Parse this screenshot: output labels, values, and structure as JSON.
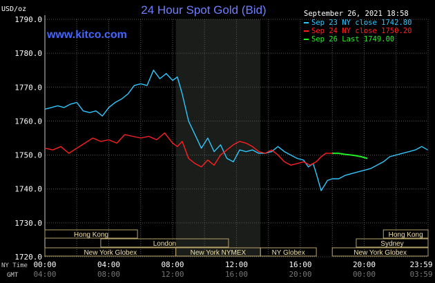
{
  "chart_data": {
    "type": "line",
    "title": "24 Hour Spot Gold (Bid)",
    "watermark": "www.kitco.com",
    "ylabel": "USD/oz",
    "timestamp": "September 26, 2021 18:58",
    "ylim": [
      1720,
      1790
    ],
    "yticks": [
      "1790.0",
      "1780.0",
      "1770.0",
      "1760.0",
      "1750.0",
      "1740.0",
      "1730.0",
      "1720.0"
    ],
    "ytick_values": [
      1790,
      1780,
      1770,
      1760,
      1750,
      1740,
      1730,
      1720
    ],
    "x_range_hours": [
      0,
      24
    ],
    "grid": true,
    "legend_position": "top-right",
    "axis_rows": [
      {
        "label": "NY Time",
        "ticks": [
          "00:00",
          "04:00",
          "08:00",
          "12:00",
          "16:00",
          "20:00",
          "23:59"
        ]
      },
      {
        "label": "GMT",
        "ticks": [
          "04:00",
          "08:00",
          "12:00",
          "16:00",
          "20:00",
          "00:00",
          "03:59"
        ]
      }
    ],
    "tick_hours": [
      0,
      4,
      8,
      12,
      16,
      20,
      23.98
    ],
    "shaded_region_hours": [
      8.2,
      13.5
    ],
    "sessions": [
      {
        "name": "Hong Kong",
        "row": 0,
        "start_h": 0,
        "end_h": 5.8
      },
      {
        "name": "Hong Kong",
        "row": 0,
        "start_h": 21.2,
        "end_h": 24
      },
      {
        "name": "London",
        "row": 1,
        "start_h": 3.5,
        "end_h": 11.5
      },
      {
        "name": "Sydney",
        "row": 1,
        "start_h": 19.5,
        "end_h": 24
      },
      {
        "name": "New York Globex",
        "row": 2,
        "start_h": 0,
        "end_h": 8.2
      },
      {
        "name": "New York NYMEX",
        "row": 2,
        "start_h": 8.2,
        "end_h": 13.5
      },
      {
        "name": "NY Globex",
        "row": 2,
        "start_h": 13.5,
        "end_h": 17
      },
      {
        "name": "New York Globex",
        "row": 2,
        "start_h": 18,
        "end_h": 24
      }
    ],
    "series": [
      {
        "name": "Sep 23 NY close 1742.80",
        "color": "#2ec8ff",
        "x": [
          0,
          0.4,
          0.8,
          1.2,
          1.6,
          2,
          2.4,
          2.8,
          3.2,
          3.6,
          4,
          4.4,
          4.8,
          5.2,
          5.6,
          6,
          6.4,
          6.8,
          7.2,
          7.6,
          8,
          8.3,
          8.6,
          9,
          9.4,
          9.8,
          10.2,
          10.6,
          11,
          11.4,
          11.8,
          12.2,
          12.6,
          13,
          13.4,
          13.8,
          14.2,
          14.6,
          15,
          15.4,
          15.8,
          16.2,
          16.5,
          16.8,
          17,
          17.3,
          17.7,
          18,
          18.4,
          18.8,
          19.2,
          19.6,
          20,
          20.4,
          20.8,
          21.2,
          21.6,
          22,
          22.4,
          22.8,
          23.2,
          23.6,
          23.98
        ],
        "y": [
          1763.5,
          1764.0,
          1764.5,
          1764.0,
          1765.0,
          1765.5,
          1763.0,
          1762.5,
          1763.0,
          1761.5,
          1764.0,
          1765.5,
          1766.5,
          1768.0,
          1770.5,
          1771.0,
          1770.5,
          1775.0,
          1772.5,
          1774.0,
          1772.0,
          1773.0,
          1768.0,
          1760.0,
          1756.0,
          1752.0,
          1755.0,
          1751.0,
          1753.0,
          1749.0,
          1748.0,
          1751.5,
          1751.0,
          1751.5,
          1750.5,
          1750.5,
          1751.0,
          1752.5,
          1751.0,
          1750.0,
          1749.0,
          1748.5,
          1746.5,
          1747.5,
          1744.5,
          1739.5,
          1742.5,
          1743.0,
          1743.0,
          1744.0,
          1744.5,
          1745.0,
          1745.5,
          1746.0,
          1747.0,
          1748.0,
          1749.5,
          1750.0,
          1750.5,
          1751.0,
          1751.5,
          1752.5,
          1751.5
        ]
      },
      {
        "name": "Sep 24 NY close 1750.20",
        "color": "#ff2020",
        "x": [
          0,
          0.5,
          1,
          1.5,
          2,
          2.5,
          3,
          3.5,
          4,
          4.5,
          5,
          5.5,
          6,
          6.5,
          7,
          7.5,
          8,
          8.3,
          8.6,
          9,
          9.4,
          9.8,
          10.2,
          10.6,
          11,
          11.4,
          11.8,
          12.2,
          12.6,
          13,
          13.4,
          13.8,
          14.2,
          14.6,
          15,
          15.4,
          15.8,
          16.2,
          16.6,
          17,
          17.3,
          17.6,
          18
        ],
        "y": [
          1752.0,
          1751.5,
          1752.5,
          1750.5,
          1752.0,
          1753.5,
          1755.0,
          1754.0,
          1754.5,
          1753.5,
          1756.0,
          1755.5,
          1755.0,
          1755.5,
          1754.5,
          1756.5,
          1753.5,
          1752.5,
          1754.0,
          1749.0,
          1747.5,
          1746.5,
          1748.5,
          1747.0,
          1750.0,
          1751.5,
          1753.0,
          1754.0,
          1753.5,
          1752.5,
          1751.0,
          1750.5,
          1751.5,
          1750.0,
          1748.0,
          1747.0,
          1747.5,
          1748.0,
          1747.0,
          1748.0,
          1749.5,
          1750.5,
          1750.5
        ]
      },
      {
        "name": "Sep 26 Last 1749.00",
        "color": "#22ee22",
        "x": [
          18,
          18.4,
          18.8,
          19.2,
          19.5,
          19.8,
          20.2
        ],
        "y": [
          1750.5,
          1750.5,
          1750.2,
          1750.0,
          1749.8,
          1749.5,
          1749.0
        ]
      }
    ]
  }
}
